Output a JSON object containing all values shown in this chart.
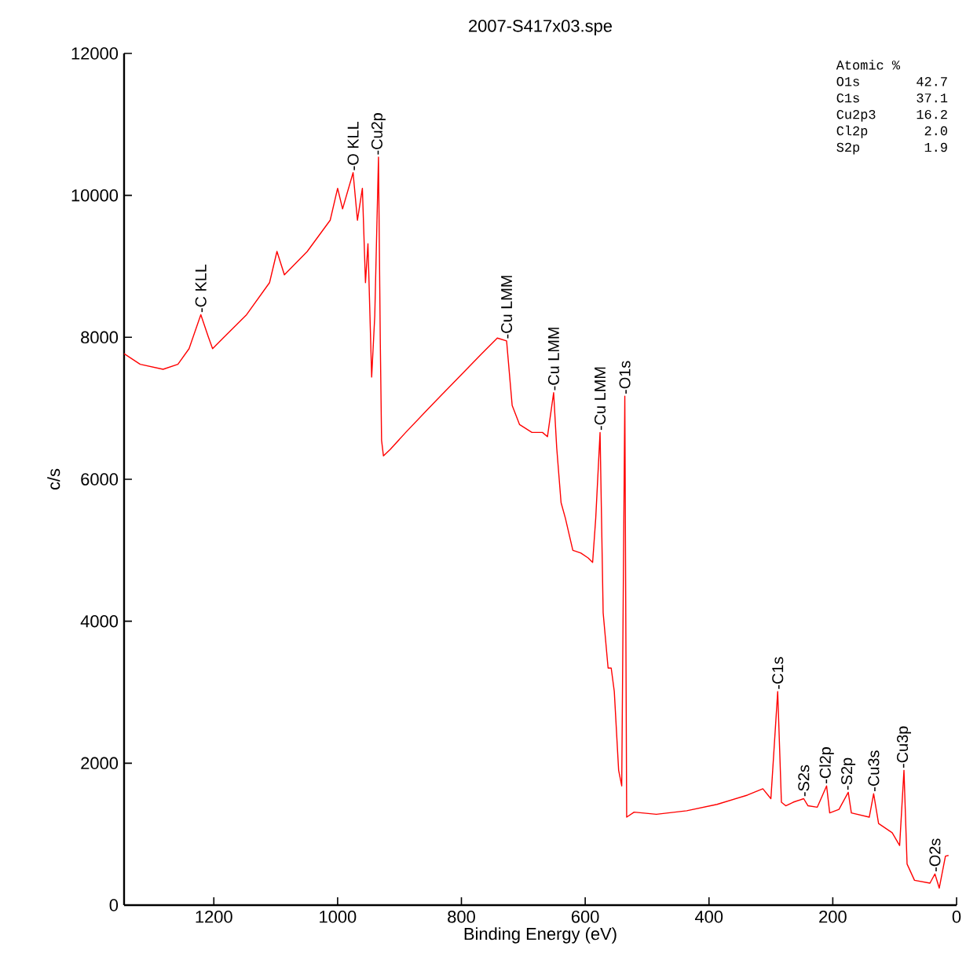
{
  "chart_data": {
    "type": "line",
    "title": "2007-S417x03.spe",
    "xlabel": "Binding Energy (eV)",
    "ylabel": "c/s",
    "xlim": [
      1345,
      0
    ],
    "xticks": [
      1200,
      1000,
      800,
      600,
      400,
      200,
      0
    ],
    "ylim": [
      0,
      12000
    ],
    "yticks": [
      0,
      2000,
      4000,
      6000,
      8000,
      10000,
      12000
    ],
    "grid": false,
    "marker": "none",
    "line_style": "solid",
    "series": [
      {
        "color": "#ff0000",
        "x": [
          1345,
          1319,
          1282,
          1258,
          1240,
          1221,
          1209,
          1202,
          1185,
          1147,
          1110,
          1098,
          1086,
          1049,
          1012,
          1000,
          992,
          975,
          968,
          960,
          955,
          951,
          945,
          940,
          934,
          931,
          929,
          926,
          915,
          890,
          853,
          804,
          767,
          742,
          727,
          718,
          706,
          686,
          669,
          661,
          651,
          646,
          639,
          632,
          620,
          607,
          595,
          588,
          583,
          576,
          571,
          563,
          558,
          553,
          546,
          541,
          536,
          533,
          521,
          485,
          436,
          387,
          338,
          313,
          300,
          289,
          283,
          276,
          264,
          247,
          240,
          225,
          210,
          205,
          190,
          175,
          170,
          141,
          134,
          126,
          104,
          92,
          85,
          80,
          68,
          43,
          35,
          28,
          18,
          13
        ],
        "values": [
          7770,
          7620,
          7550,
          7620,
          7840,
          8320,
          8010,
          7840,
          7990,
          8320,
          8770,
          9210,
          8880,
          9210,
          9650,
          10100,
          9810,
          10320,
          9650,
          10100,
          8770,
          9320,
          7440,
          8300,
          10540,
          7900,
          6550,
          6330,
          6420,
          6660,
          7000,
          7440,
          7770,
          7990,
          7950,
          7040,
          6770,
          6660,
          6660,
          6600,
          7220,
          6440,
          5670,
          5450,
          5000,
          4960,
          4890,
          4830,
          5450,
          6660,
          4120,
          3340,
          3340,
          3010,
          1900,
          1680,
          7170,
          1240,
          1310,
          1280,
          1330,
          1420,
          1550,
          1640,
          1500,
          3010,
          1450,
          1400,
          1450,
          1500,
          1400,
          1380,
          1680,
          1300,
          1350,
          1590,
          1300,
          1240,
          1570,
          1150,
          1020,
          840,
          1900,
          580,
          350,
          310,
          440,
          240,
          690,
          700
        ]
      }
    ],
    "annotations": [
      {
        "text": "-C KLL",
        "x": 1221,
        "y": 8320
      },
      {
        "text": "-O KLL",
        "x": 975,
        "y": 10320
      },
      {
        "text": "-Cu2p",
        "x": 934,
        "y": 10540
      },
      {
        "text": "-Cu LMM",
        "x": 727,
        "y": 7950
      },
      {
        "text": "-Cu LMM",
        "x": 651,
        "y": 7220
      },
      {
        "text": "-Cu LMM",
        "x": 576,
        "y": 6660
      },
      {
        "text": "-O1s",
        "x": 536,
        "y": 7170
      },
      {
        "text": "-C1s",
        "x": 289,
        "y": 3010
      },
      {
        "text": "-S2s",
        "x": 247,
        "y": 1500
      },
      {
        "text": "-Cl2p",
        "x": 210,
        "y": 1680
      },
      {
        "text": "-S2p",
        "x": 175,
        "y": 1590
      },
      {
        "text": "-Cu3s",
        "x": 134,
        "y": 1570
      },
      {
        "text": "-Cu3p",
        "x": 85,
        "y": 1900
      },
      {
        "text": "-O2s",
        "x": 35,
        "y": 440
      },
      "Atomic %",
      "O1s",
      "42.7",
      "C1s",
      "37.1",
      "Cu2p3",
      "16.2",
      "Cl2p",
      "2.0",
      "S2p",
      "1.9"
    ]
  }
}
